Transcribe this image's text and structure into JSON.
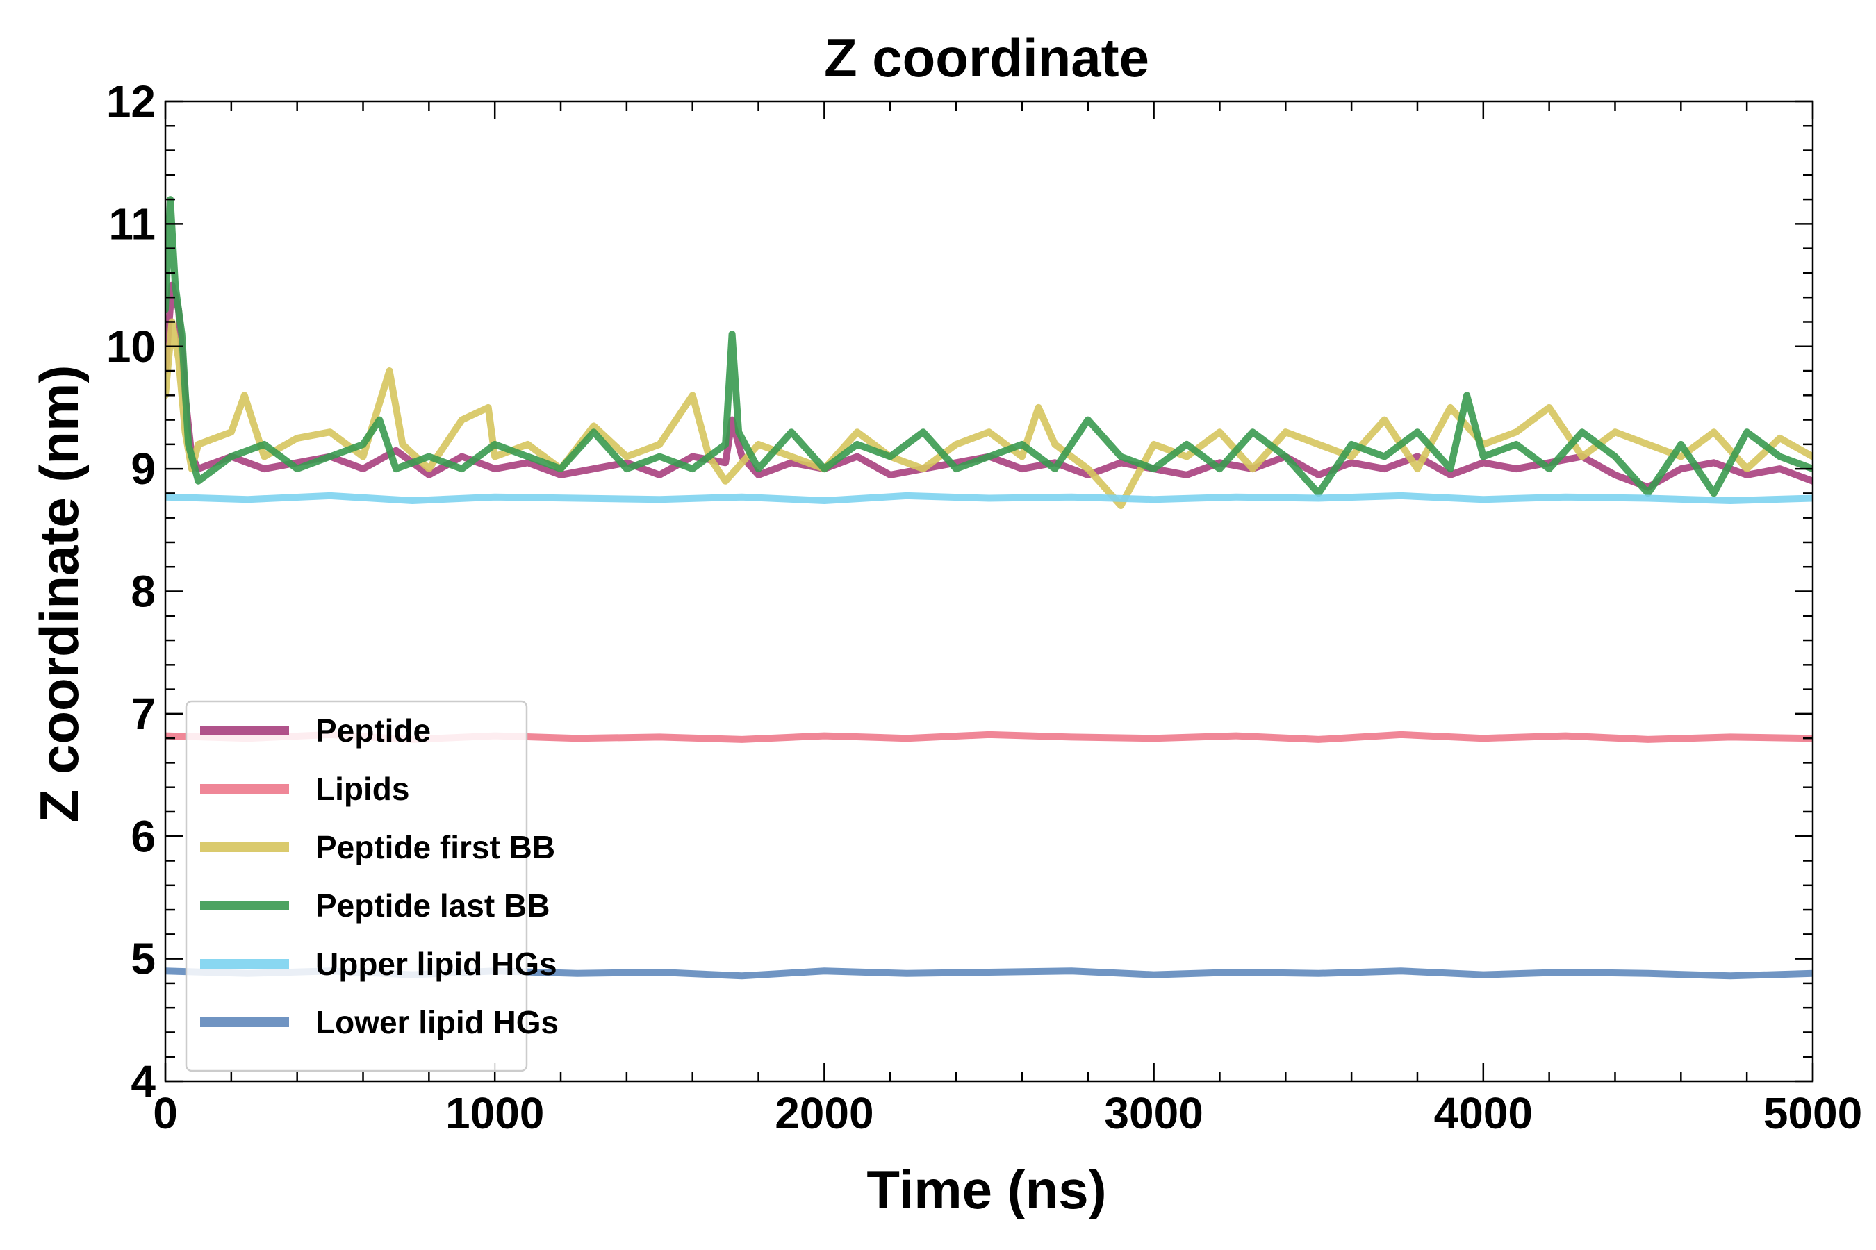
{
  "chart_data": {
    "type": "line",
    "title": "Z coordinate",
    "xlabel": "Time (ns)",
    "ylabel": "Z coordinate (nm)",
    "xlim": [
      0,
      5000
    ],
    "ylim": [
      4,
      12
    ],
    "xticks": [
      "0",
      "1000",
      "2000",
      "3000",
      "4000",
      "5000"
    ],
    "yticks": [
      "4",
      "5",
      "6",
      "7",
      "8",
      "9",
      "10",
      "11",
      "12"
    ],
    "grid": false,
    "legend_position": "lower-left",
    "series": [
      {
        "name": "Peptide",
        "color": "#A8407E",
        "x": [
          0,
          20,
          40,
          60,
          80,
          100,
          200,
          300,
          400,
          500,
          600,
          700,
          800,
          900,
          1000,
          1100,
          1200,
          1300,
          1400,
          1500,
          1600,
          1700,
          1720,
          1750,
          1800,
          1900,
          2000,
          2100,
          2200,
          2300,
          2400,
          2500,
          2600,
          2700,
          2800,
          2900,
          3000,
          3100,
          3200,
          3300,
          3400,
          3500,
          3600,
          3700,
          3800,
          3900,
          4000,
          4100,
          4200,
          4300,
          4400,
          4500,
          4600,
          4700,
          4800,
          4900,
          5000
        ],
        "values": [
          9.8,
          10.5,
          10.3,
          9.6,
          9.1,
          9.0,
          9.1,
          9.0,
          9.05,
          9.1,
          9.0,
          9.15,
          8.95,
          9.1,
          9.0,
          9.05,
          8.95,
          9.0,
          9.05,
          8.95,
          9.1,
          9.05,
          9.4,
          9.1,
          8.95,
          9.05,
          9.0,
          9.1,
          8.95,
          9.0,
          9.05,
          9.1,
          9.0,
          9.05,
          8.95,
          9.05,
          9.0,
          8.95,
          9.05,
          9.0,
          9.1,
          8.95,
          9.05,
          9.0,
          9.1,
          8.95,
          9.05,
          9.0,
          9.05,
          9.1,
          8.95,
          8.85,
          9.0,
          9.05,
          8.95,
          9.0,
          8.9
        ]
      },
      {
        "name": "Lipids",
        "color": "#EE7A8C",
        "x": [
          0,
          250,
          500,
          750,
          1000,
          1250,
          1500,
          1750,
          2000,
          2250,
          2500,
          2750,
          3000,
          3250,
          3500,
          3750,
          4000,
          4250,
          4500,
          4750,
          5000
        ],
        "values": [
          6.82,
          6.8,
          6.83,
          6.79,
          6.82,
          6.8,
          6.81,
          6.79,
          6.82,
          6.8,
          6.83,
          6.81,
          6.8,
          6.82,
          6.79,
          6.83,
          6.8,
          6.82,
          6.79,
          6.81,
          6.8
        ]
      },
      {
        "name": "Peptide first BB",
        "color": "#D6C55E",
        "x": [
          0,
          20,
          40,
          60,
          80,
          100,
          200,
          240,
          300,
          400,
          500,
          600,
          680,
          720,
          800,
          900,
          980,
          1000,
          1100,
          1200,
          1300,
          1400,
          1500,
          1600,
          1650,
          1700,
          1800,
          1900,
          2000,
          2100,
          2200,
          2300,
          2400,
          2500,
          2600,
          2650,
          2700,
          2800,
          2900,
          3000,
          3100,
          3200,
          3300,
          3400,
          3500,
          3600,
          3700,
          3800,
          3900,
          4000,
          4100,
          4200,
          4300,
          4400,
          4500,
          4600,
          4700,
          4800,
          4900,
          5000
        ],
        "values": [
          9.6,
          10.2,
          9.9,
          9.3,
          9.0,
          9.2,
          9.3,
          9.6,
          9.1,
          9.25,
          9.3,
          9.1,
          9.8,
          9.2,
          9.0,
          9.4,
          9.5,
          9.1,
          9.2,
          9.0,
          9.35,
          9.1,
          9.2,
          9.6,
          9.1,
          8.9,
          9.2,
          9.1,
          9.0,
          9.3,
          9.1,
          9.0,
          9.2,
          9.3,
          9.1,
          9.5,
          9.2,
          9.0,
          8.7,
          9.2,
          9.1,
          9.3,
          9.0,
          9.3,
          9.2,
          9.1,
          9.4,
          9.0,
          9.5,
          9.2,
          9.3,
          9.5,
          9.1,
          9.3,
          9.2,
          9.1,
          9.3,
          9.0,
          9.25,
          9.1
        ]
      },
      {
        "name": "Peptide last BB",
        "color": "#3A9A50",
        "x": [
          0,
          15,
          30,
          50,
          70,
          100,
          200,
          300,
          400,
          500,
          600,
          650,
          700,
          800,
          900,
          1000,
          1100,
          1200,
          1300,
          1400,
          1500,
          1600,
          1700,
          1720,
          1740,
          1800,
          1900,
          2000,
          2100,
          2200,
          2300,
          2400,
          2500,
          2600,
          2700,
          2800,
          2900,
          3000,
          3100,
          3200,
          3300,
          3400,
          3500,
          3600,
          3700,
          3800,
          3900,
          3950,
          4000,
          4100,
          4200,
          4300,
          4400,
          4500,
          4600,
          4700,
          4800,
          4900,
          5000
        ],
        "values": [
          10.3,
          11.2,
          10.5,
          10.1,
          9.2,
          8.9,
          9.1,
          9.2,
          9.0,
          9.1,
          9.2,
          9.4,
          9.0,
          9.1,
          9.0,
          9.2,
          9.1,
          9.0,
          9.3,
          9.0,
          9.1,
          9.0,
          9.2,
          10.1,
          9.3,
          9.0,
          9.3,
          9.0,
          9.2,
          9.1,
          9.3,
          9.0,
          9.1,
          9.2,
          9.0,
          9.4,
          9.1,
          9.0,
          9.2,
          9.0,
          9.3,
          9.1,
          8.8,
          9.2,
          9.1,
          9.3,
          9.0,
          9.6,
          9.1,
          9.2,
          9.0,
          9.3,
          9.1,
          8.8,
          9.2,
          8.8,
          9.3,
          9.1,
          9.0
        ]
      },
      {
        "name": "Upper lipid HGs",
        "color": "#7DD3F0",
        "x": [
          0,
          250,
          500,
          750,
          1000,
          1250,
          1500,
          1750,
          2000,
          2250,
          2500,
          2750,
          3000,
          3250,
          3500,
          3750,
          4000,
          4250,
          4500,
          4750,
          5000
        ],
        "values": [
          8.77,
          8.75,
          8.78,
          8.74,
          8.77,
          8.76,
          8.75,
          8.77,
          8.74,
          8.78,
          8.76,
          8.77,
          8.75,
          8.77,
          8.76,
          8.78,
          8.75,
          8.77,
          8.76,
          8.74,
          8.76
        ]
      },
      {
        "name": "Lower lipid HGs",
        "color": "#6189BC",
        "x": [
          0,
          250,
          500,
          750,
          1000,
          1250,
          1500,
          1750,
          2000,
          2250,
          2500,
          2750,
          3000,
          3250,
          3500,
          3750,
          4000,
          4250,
          4500,
          4750,
          5000
        ],
        "values": [
          4.9,
          4.88,
          4.9,
          4.87,
          4.9,
          4.88,
          4.89,
          4.86,
          4.9,
          4.88,
          4.89,
          4.9,
          4.87,
          4.89,
          4.88,
          4.9,
          4.87,
          4.89,
          4.88,
          4.86,
          4.88
        ]
      }
    ]
  }
}
